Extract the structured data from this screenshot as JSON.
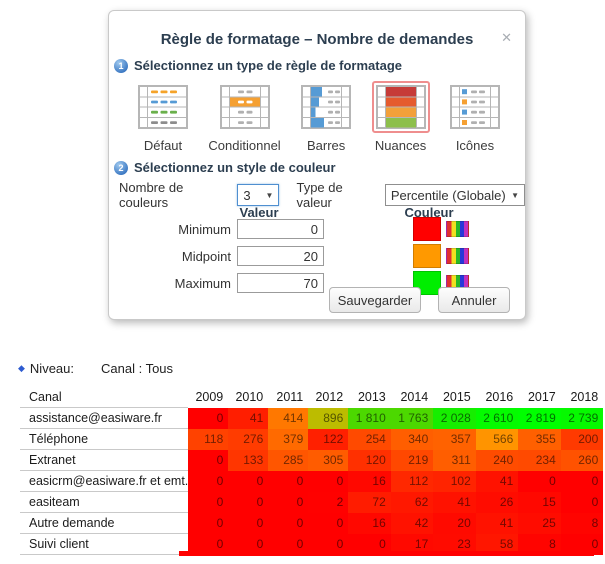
{
  "dialog": {
    "title": "Règle de formatage – Nombre de demandes",
    "close_glyph": "✕",
    "step1": {
      "number": "1",
      "label": "Sélectionnez un type de règle de formatage"
    },
    "types": [
      {
        "label": "Défaut"
      },
      {
        "label": "Conditionnel"
      },
      {
        "label": "Barres"
      },
      {
        "label": "Nuances",
        "selected": true
      },
      {
        "label": "Icônes"
      }
    ],
    "step2": {
      "number": "2",
      "label": "Sélectionnez un style de couleur"
    },
    "controls": {
      "num_colors_label": "Nombre de couleurs",
      "num_colors_value": "3",
      "value_type_label": "Type de valeur",
      "value_type_value": "Percentile (Globale)",
      "arrow_glyph": "▼"
    },
    "value_header": "Valeur",
    "color_header": "Couleur",
    "stops": [
      {
        "label": "Minimum",
        "value": "0",
        "color": "#ff0000"
      },
      {
        "label": "Midpoint",
        "value": "20",
        "color": "#ff9900"
      },
      {
        "label": "Maximum",
        "value": "70",
        "color": "#00ee00"
      }
    ],
    "buttons": {
      "save": "Sauvegarder",
      "cancel": "Annuler"
    }
  },
  "level_bar": {
    "bullet": "◆",
    "label": "Niveau:",
    "value": "Canal : Tous"
  },
  "chart_data": {
    "type": "heatmap",
    "title": "Nombre de demandes",
    "row_header": "Canal",
    "columns": [
      "2009",
      "2010",
      "2011",
      "2012",
      "2013",
      "2014",
      "2015",
      "2016",
      "2017",
      "2018"
    ],
    "rows": [
      {
        "label": "assistance@easiware.fr",
        "values": [
          "0",
          "41",
          "414",
          "896",
          "1 810",
          "1 763",
          "2 028",
          "2 610",
          "2 819",
          "2 739"
        ],
        "colors": [
          "#ff0000",
          "#ff1e00",
          "#ff7800",
          "#bcbc00",
          "#4cd800",
          "#4cd800",
          "#16ee00",
          "#04fb00",
          "#00ff00",
          "#06f900"
        ]
      },
      {
        "label": "Téléphone",
        "values": [
          "118",
          "276",
          "379",
          "122",
          "254",
          "340",
          "357",
          "566",
          "355",
          "200"
        ],
        "colors": [
          "#ff4200",
          "#ff3c00",
          "#ff6a00",
          "#ff2000",
          "#ff4a00",
          "#ff5e00",
          "#ff6200",
          "#ff9400",
          "#ff6000",
          "#ff3a00"
        ]
      },
      {
        "label": "Extranet",
        "values": [
          "0",
          "133",
          "285",
          "305",
          "120",
          "219",
          "311",
          "240",
          "234",
          "260"
        ],
        "colors": [
          "#ff0000",
          "#ff3600",
          "#ff5600",
          "#ff5c00",
          "#ff3000",
          "#ff4800",
          "#ff5e00",
          "#ff4c00",
          "#ff4a00",
          "#ff5200"
        ]
      },
      {
        "label": "easicrm@easiware.fr et emt.",
        "values": [
          "0",
          "0",
          "0",
          "0",
          "16",
          "112",
          "102",
          "41",
          "0",
          "0"
        ],
        "colors": [
          "#ff0000",
          "#ff0000",
          "#ff0000",
          "#ff0000",
          "#ff0800",
          "#ff2800",
          "#ff2400",
          "#ff1200",
          "#ff0000",
          "#ff0000"
        ]
      },
      {
        "label": "easiteam",
        "values": [
          "0",
          "0",
          "0",
          "2",
          "72",
          "62",
          "41",
          "26",
          "15",
          "0"
        ],
        "colors": [
          "#ff0000",
          "#ff0000",
          "#ff0000",
          "#ff0100",
          "#ff1c00",
          "#ff1800",
          "#ff1200",
          "#ff0c00",
          "#ff0800",
          "#ff0000"
        ]
      },
      {
        "label": "Autre demande",
        "values": [
          "0",
          "0",
          "0",
          "0",
          "16",
          "42",
          "20",
          "41",
          "25",
          "8"
        ],
        "colors": [
          "#ff0000",
          "#ff0000",
          "#ff0000",
          "#ff0000",
          "#ff0800",
          "#ff1200",
          "#ff0a00",
          "#ff1200",
          "#ff0c00",
          "#ff0400"
        ]
      },
      {
        "label": "Suivi client",
        "values": [
          "0",
          "0",
          "0",
          "0",
          "0",
          "17",
          "23",
          "58",
          "8",
          "0"
        ],
        "colors": [
          "#ff0000",
          "#ff0000",
          "#ff0000",
          "#ff0000",
          "#ff0000",
          "#ff0900",
          "#ff0b00",
          "#ff1600",
          "#ff0400",
          "#ff0000"
        ]
      }
    ]
  }
}
